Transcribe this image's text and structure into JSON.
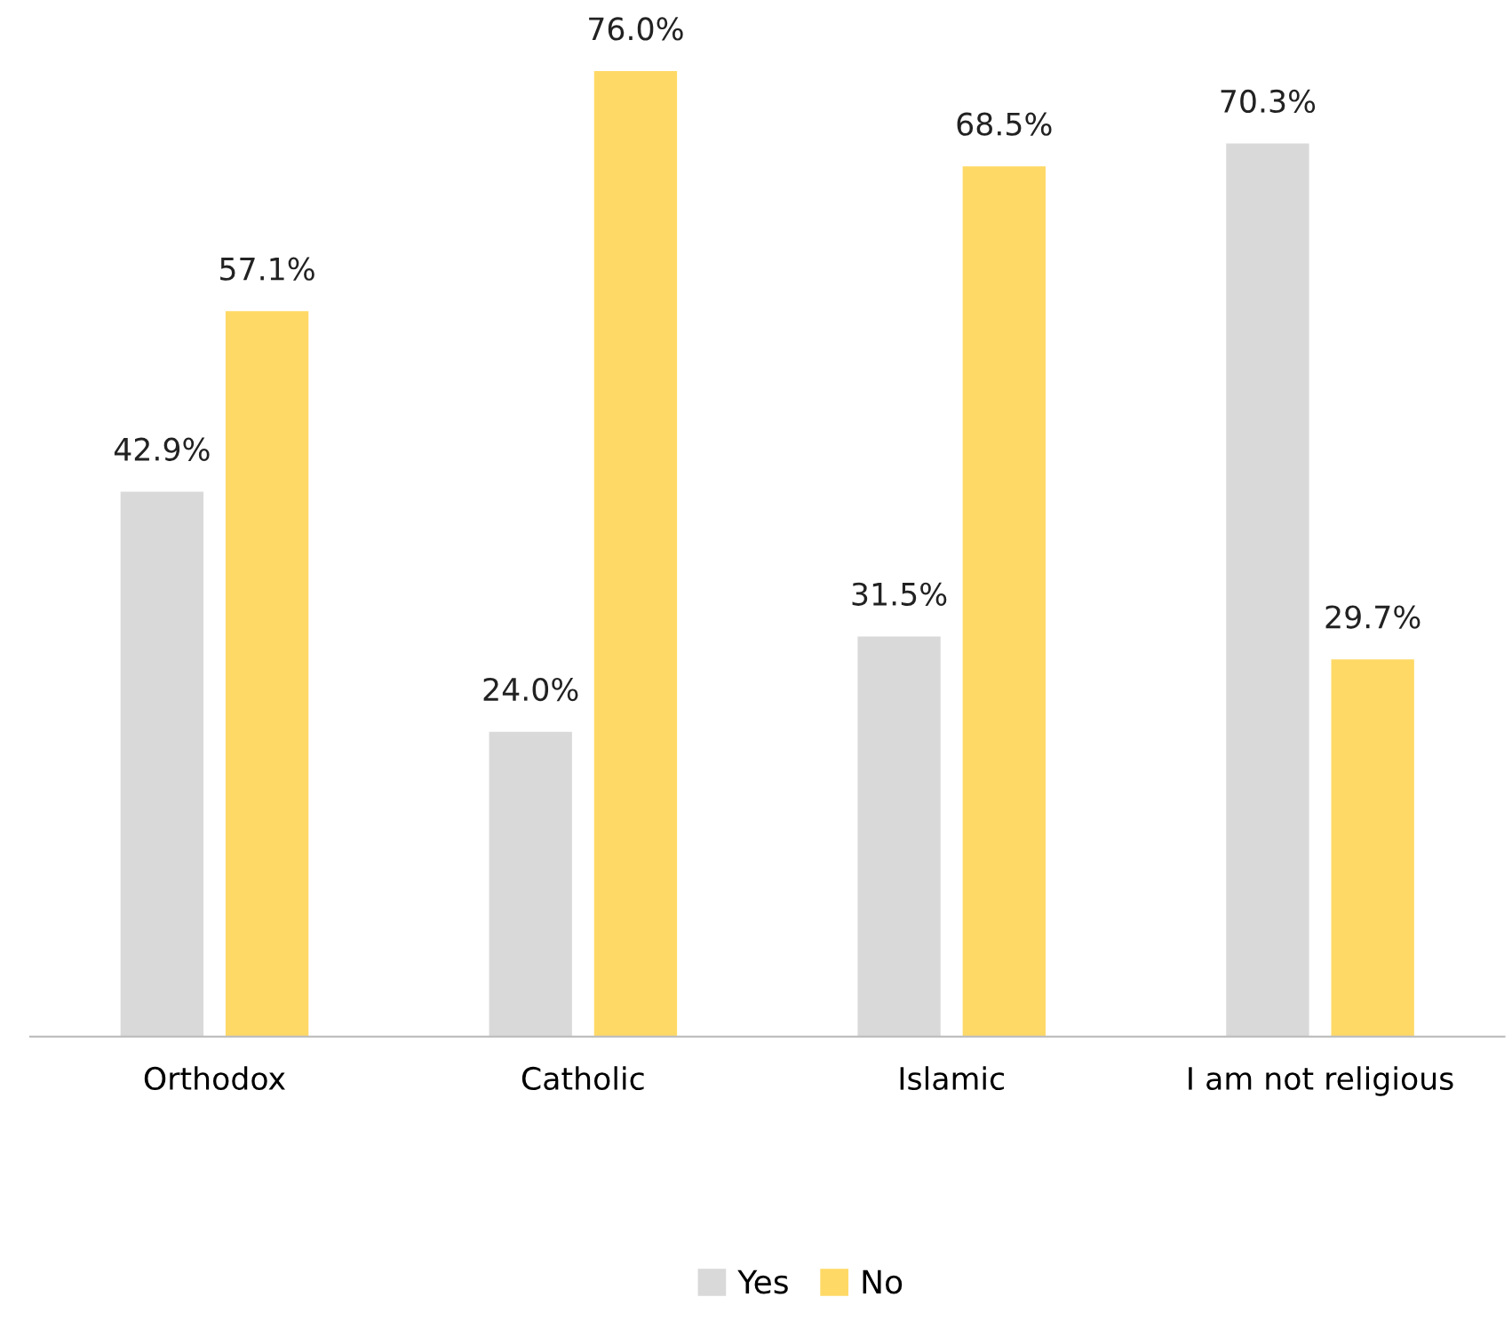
{
  "chart_data": {
    "type": "bar",
    "categories": [
      "Orthodox",
      "Catholic",
      "Islamic",
      "I am not religious"
    ],
    "series": [
      {
        "name": "Yes",
        "color": "#d9d9d9",
        "values": [
          42.9,
          24.0,
          31.5,
          70.3
        ],
        "value_labels": [
          "42.9%",
          "24.0%",
          "31.5%",
          "70.3%"
        ]
      },
      {
        "name": "No",
        "color": "#ffd966",
        "values": [
          57.1,
          76.0,
          68.5,
          29.7
        ],
        "value_labels": [
          "57.1%",
          "76.0%",
          "68.5%",
          "29.7%"
        ]
      }
    ],
    "legend": "bottom"
  }
}
